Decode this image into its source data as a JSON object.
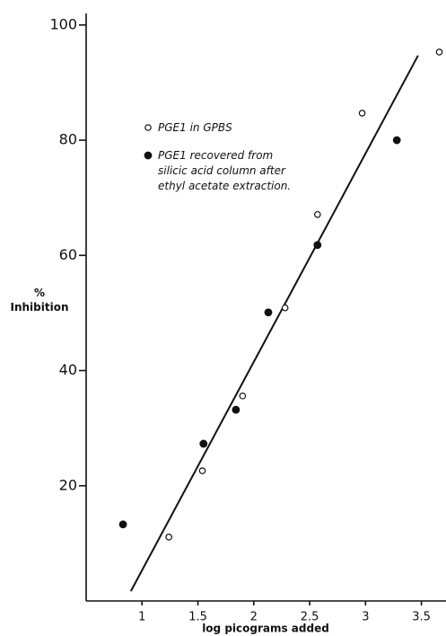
{
  "chart_data": {
    "type": "scatter",
    "x_label": "log picograms added",
    "y_label": "% Inhibition",
    "xlim": [
      0.5,
      3.72
    ],
    "ylim": [
      0,
      102
    ],
    "xticks": [
      1,
      1.5,
      2,
      2.5,
      3,
      3.5
    ],
    "yticks": [
      20,
      40,
      60,
      80,
      100
    ],
    "series": [
      {
        "name": "PGE1 in GPBS",
        "color": "#111111",
        "marker": "open",
        "x": [
          1.24,
          1.54,
          1.9,
          2.28,
          2.57,
          2.97,
          3.66
        ],
        "values": [
          11.1,
          22.6,
          35.6,
          50.9,
          67.1,
          84.7,
          95.3
        ]
      },
      {
        "name": "PGE1 recovered from silicic acid column after ethyl acetate extraction.",
        "color": "#111111",
        "marker": "filled",
        "x": [
          0.83,
          1.55,
          1.84,
          2.13,
          2.57,
          3.28
        ],
        "values": [
          13.3,
          27.3,
          33.2,
          50.1,
          61.8,
          80.0
        ]
      }
    ],
    "fit_line": {
      "x": [
        0.9,
        3.47
      ],
      "values": [
        1.7,
        94.7
      ],
      "color": "#111111"
    }
  }
}
